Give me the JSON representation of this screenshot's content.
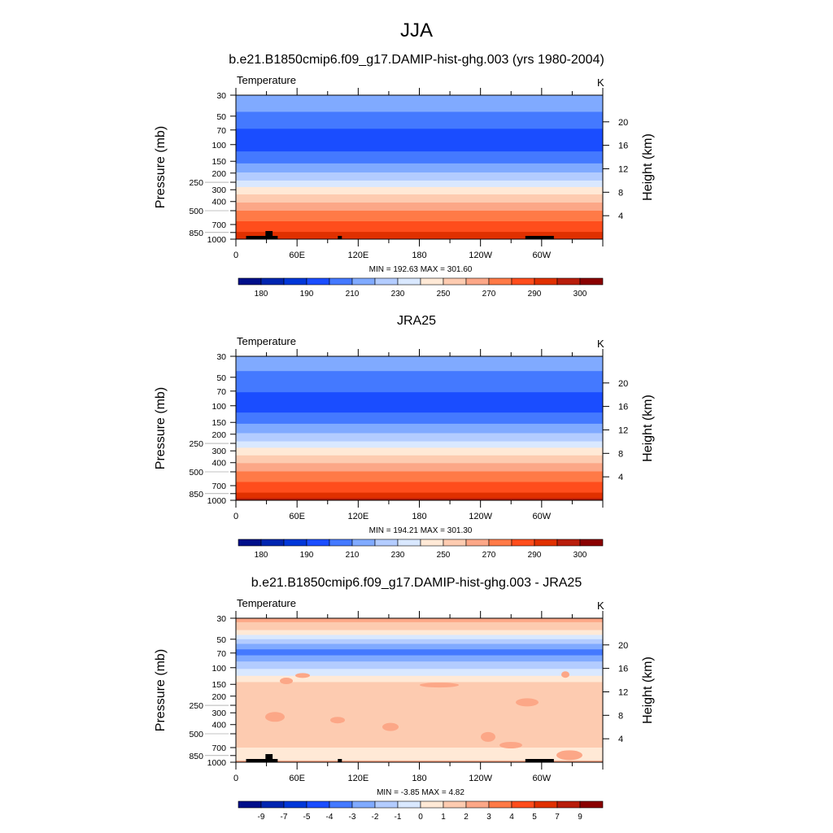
{
  "figure_title": "JJA",
  "colors": [
    "#000f8a",
    "#0025b0",
    "#0037d8",
    "#1a4dff",
    "#4479ff",
    "#80aaff",
    "#b3ccff",
    "#d9e8ff",
    "#ffe9d6",
    "#fdcbb0",
    "#fca787",
    "#ff7a47",
    "#ff4d1c",
    "#e03000",
    "#b81d0b",
    "#8a0000"
  ],
  "chart_data": [
    {
      "type": "heatmap",
      "title": "b.e21.B1850cmip6.f09_g17.DAMIP-hist-ghg.003 (yrs 1980-2004)",
      "left_label": "Temperature",
      "right_label": "K",
      "ylabel": "Pressure (mb)",
      "y2label": "Height (km)",
      "xticks": [
        "0",
        "60E",
        "120E",
        "180",
        "120W",
        "60W"
      ],
      "yticks": [
        30,
        50,
        70,
        100,
        150,
        200,
        250,
        300,
        400,
        500,
        700,
        850,
        1000
      ],
      "y2ticks": [
        4,
        8,
        12,
        16,
        20
      ],
      "ylim": [
        1000,
        30
      ],
      "y_scale": "log",
      "stats": "MIN = 192.63  MAX = 301.60",
      "colorbar_labels": [
        "180",
        "190",
        "210",
        "230",
        "250",
        "270",
        "290",
        "300"
      ],
      "bands": [
        [
          30,
          45,
          5
        ],
        [
          45,
          68,
          4
        ],
        [
          68,
          118,
          3
        ],
        [
          118,
          158,
          4
        ],
        [
          158,
          197,
          5
        ],
        [
          197,
          240,
          6
        ],
        [
          240,
          281,
          7
        ],
        [
          281,
          336,
          8
        ],
        [
          336,
          410,
          9
        ],
        [
          410,
          500,
          10
        ],
        [
          500,
          647,
          11
        ],
        [
          647,
          838,
          12
        ],
        [
          838,
          1000,
          13
        ]
      ],
      "terrain": true
    },
    {
      "type": "heatmap",
      "title": "JRA25",
      "left_label": "Temperature",
      "right_label": "K",
      "ylabel": "Pressure (mb)",
      "y2label": "Height (km)",
      "xticks": [
        "0",
        "60E",
        "120E",
        "180",
        "120W",
        "60W"
      ],
      "yticks": [
        30,
        50,
        70,
        100,
        150,
        200,
        250,
        300,
        400,
        500,
        700,
        850,
        1000
      ],
      "y2ticks": [
        4,
        8,
        12,
        16,
        20
      ],
      "ylim": [
        1000,
        30
      ],
      "y_scale": "log",
      "stats": "MIN = 194.21  MAX = 301.30",
      "colorbar_labels": [
        "180",
        "190",
        "210",
        "230",
        "250",
        "270",
        "290",
        "300"
      ],
      "bands": [
        [
          30,
          43,
          5
        ],
        [
          43,
          72,
          4
        ],
        [
          72,
          118,
          3
        ],
        [
          118,
          155,
          4
        ],
        [
          155,
          195,
          5
        ],
        [
          195,
          238,
          6
        ],
        [
          238,
          278,
          7
        ],
        [
          278,
          335,
          8
        ],
        [
          335,
          405,
          9
        ],
        [
          405,
          495,
          10
        ],
        [
          495,
          640,
          11
        ],
        [
          640,
          830,
          12
        ],
        [
          830,
          950,
          13
        ],
        [
          950,
          1000,
          14
        ]
      ],
      "terrain": false
    },
    {
      "type": "heatmap",
      "title": "b.e21.B1850cmip6.f09_g17.DAMIP-hist-ghg.003 - JRA25",
      "left_label": "Temperature",
      "right_label": "K",
      "ylabel": "Pressure (mb)",
      "y2label": "Height (km)",
      "xticks": [
        "0",
        "60E",
        "120E",
        "180",
        "120W",
        "60W"
      ],
      "yticks": [
        30,
        50,
        70,
        100,
        150,
        200,
        250,
        300,
        400,
        500,
        700,
        850,
        1000
      ],
      "y2ticks": [
        4,
        8,
        12,
        16,
        20
      ],
      "ylim": [
        1000,
        30
      ],
      "y_scale": "log",
      "stats": "MIN =  -3.85  MAX =   4.82",
      "colorbar_labels": [
        "-9",
        "-7",
        "-5",
        "-4",
        "-3",
        "-2",
        "-1",
        "0",
        "1",
        "2",
        "3",
        "4",
        "5",
        "7",
        "9"
      ],
      "bands": [
        [
          30,
          33,
          10
        ],
        [
          33,
          40,
          9
        ],
        [
          40,
          45,
          8
        ],
        [
          45,
          50,
          7
        ],
        [
          50,
          56,
          6
        ],
        [
          56,
          64,
          5
        ],
        [
          64,
          74,
          4
        ],
        [
          74,
          86,
          5
        ],
        [
          86,
          103,
          6
        ],
        [
          103,
          122,
          7
        ],
        [
          122,
          142,
          8
        ],
        [
          142,
          700,
          9
        ],
        [
          700,
          960,
          8
        ],
        [
          960,
          1000,
          10
        ]
      ],
      "terrain": true
    }
  ]
}
